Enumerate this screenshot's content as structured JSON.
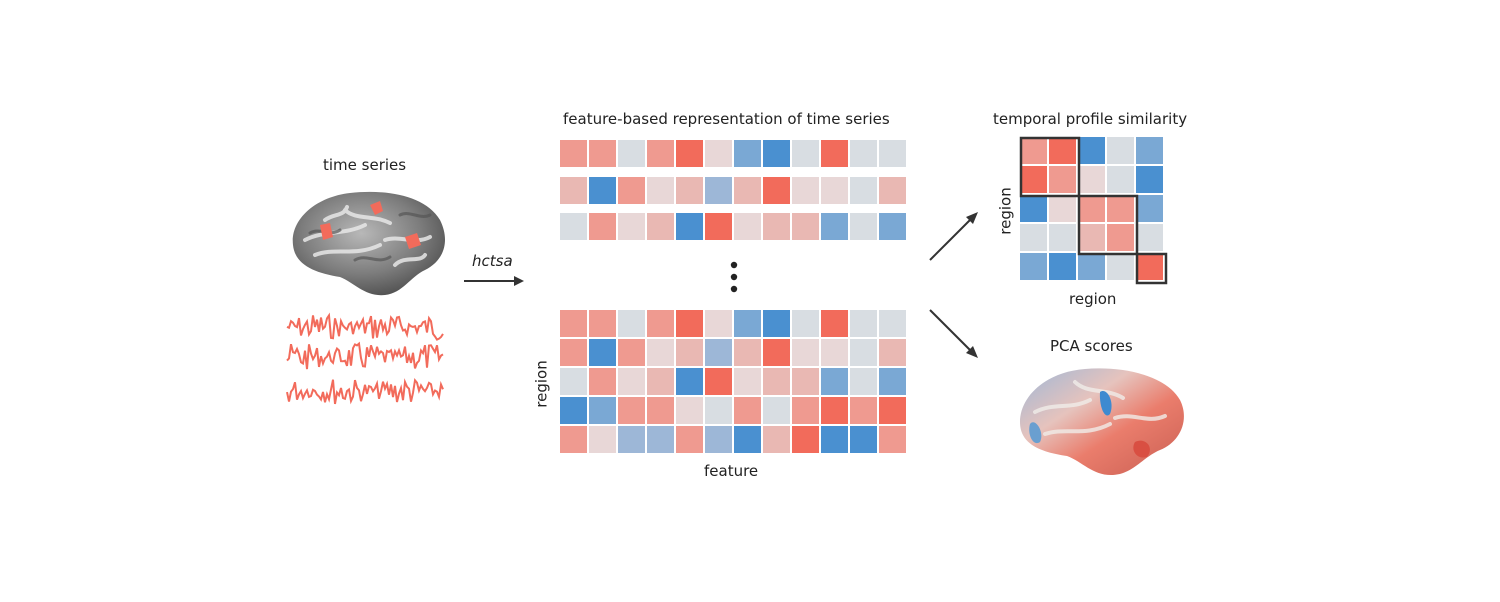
{
  "labels": {
    "time_series": "time series",
    "hctsa": "hctsa",
    "feature_title": "feature-based representation of time series",
    "matrix_ylabel": "region",
    "matrix_xlabel": "feature",
    "similarity_title": "temporal profile similarity",
    "similarity_ylabel": "region",
    "similarity_xlabel": "region",
    "pca_title": "PCA scores"
  },
  "colors": {
    "red_strong": "#f26b5b",
    "red_mid": "#ef9a90",
    "red_light": "#e9b8b3",
    "pink_pale": "#e8d7d7",
    "grey_pale": "#d8dde2",
    "blue_light": "#9db7d7",
    "blue_mid": "#7aa8d4",
    "blue_strong": "#4a90d0",
    "signal": "#f26b5b",
    "arrow": "#333333"
  },
  "feature_rows": [
    [
      "rm",
      "rm",
      "gp",
      "rm",
      "rs",
      "pp",
      "bm",
      "bs",
      "gp",
      "rs",
      "gp",
      "gp"
    ],
    [
      "rl",
      "bs",
      "rm",
      "pp",
      "rl",
      "bl",
      "rl",
      "rs",
      "pp",
      "pp",
      "gp",
      "rl"
    ],
    [
      "gp",
      "rm",
      "pp",
      "rl",
      "bs",
      "rs",
      "pp",
      "rl",
      "rl",
      "bm",
      "gp",
      "bm"
    ]
  ],
  "region_feature_matrix": [
    [
      "rm",
      "rm",
      "gp",
      "rm",
      "rs",
      "pp",
      "bm",
      "bs",
      "gp",
      "rs",
      "gp",
      "gp"
    ],
    [
      "rm",
      "bs",
      "rm",
      "pp",
      "rl",
      "bl",
      "rl",
      "rs",
      "pp",
      "pp",
      "gp",
      "rl"
    ],
    [
      "gp",
      "rm",
      "pp",
      "rl",
      "bs",
      "rs",
      "pp",
      "rl",
      "rl",
      "bm",
      "gp",
      "bm"
    ],
    [
      "bs",
      "bm",
      "rm",
      "rm",
      "pp",
      "gp",
      "rm",
      "gp",
      "rm",
      "rs",
      "rm",
      "rs"
    ],
    [
      "rm",
      "pp",
      "bl",
      "bl",
      "rm",
      "bl",
      "bs",
      "rl",
      "rs",
      "bs",
      "bs",
      "rm"
    ]
  ],
  "similarity_matrix": [
    [
      "rm",
      "rs",
      "bs",
      "gp",
      "bm"
    ],
    [
      "rs",
      "rm",
      "pp",
      "gp",
      "bs"
    ],
    [
      "bs",
      "pp",
      "rm",
      "rm",
      "bm"
    ],
    [
      "gp",
      "gp",
      "rl",
      "rm",
      "gp"
    ],
    [
      "bm",
      "bs",
      "bm",
      "gp",
      "rs"
    ]
  ]
}
